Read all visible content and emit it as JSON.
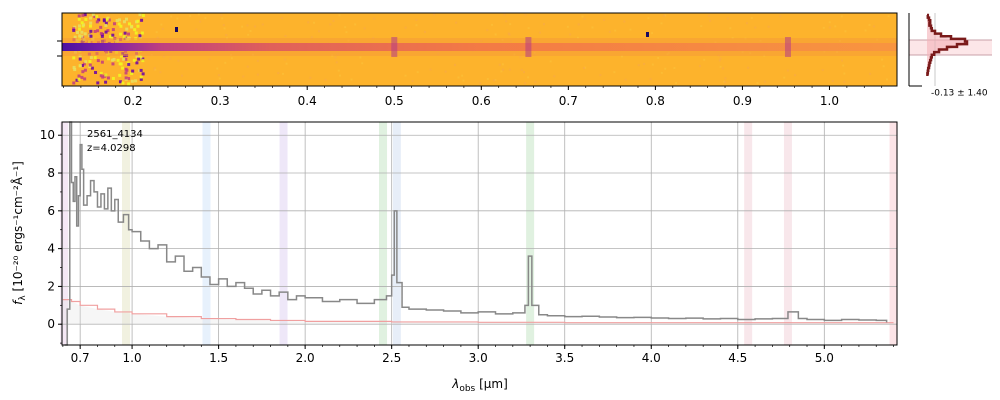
{
  "chart_data": [
    {
      "type": "heatmap",
      "panel": "2d-spectrum",
      "colormap": "plasma",
      "top_axis_ticks": [
        "0.2",
        "0.3",
        "0.4",
        "0.5",
        "0.6",
        "0.7",
        "0.8",
        "0.9",
        "1.0"
      ],
      "emission_features_um": [
        2.515,
        3.29,
        4.79
      ]
    },
    {
      "type": "line",
      "panel": "profile",
      "label": "-0.13 ± 1.40",
      "profile_values": [
        0.0,
        0.02,
        0.05,
        0.08,
        0.06,
        0.1,
        0.12,
        0.2,
        0.35,
        0.6,
        0.95,
        1.0,
        0.75,
        0.5,
        0.3,
        0.18,
        0.12,
        0.1,
        0.08,
        0.06,
        0.05,
        0.03,
        0.02,
        0.01
      ]
    },
    {
      "type": "line",
      "panel": "1d-spectrum",
      "annotation_lines": [
        "2561_4134",
        "z=4.0298"
      ],
      "xlabel_main": "λ",
      "xlabel_sub": "obs",
      "xlabel_unit": " [μm]",
      "ylabel_main": "f",
      "ylabel_sub": "λ",
      "ylabel_unit": " [10⁻²⁰ ergs⁻¹cm⁻²Å⁻¹]",
      "xlim": [
        0.595,
        5.42
      ],
      "ylim": [
        -1.1,
        10.7
      ],
      "x_ticks": [
        "0.7",
        "1.0",
        "1.5",
        "2.0",
        "2.5",
        "3.0",
        "3.5",
        "4.0",
        "4.5",
        "5.0"
      ],
      "y_ticks": [
        "0",
        "2",
        "4",
        "6",
        "8",
        "10"
      ],
      "grid": true,
      "line_bands": [
        {
          "x": 0.608,
          "color": "#cc88cc"
        },
        {
          "x": 0.965,
          "color": "#bbbb66"
        },
        {
          "x": 1.43,
          "color": "#88bbee"
        },
        {
          "x": 1.875,
          "color": "#aa88dd"
        },
        {
          "x": 2.45,
          "color": "#66bb66"
        },
        {
          "x": 2.53,
          "color": "#88aadd"
        },
        {
          "x": 3.3,
          "color": "#66bb66"
        },
        {
          "x": 4.56,
          "color": "#dd8899"
        },
        {
          "x": 4.79,
          "color": "#dd8899"
        },
        {
          "x": 5.4,
          "color": "#ee7788"
        }
      ],
      "series": [
        {
          "color": "#888888",
          "x": [
            0.61,
            0.625,
            0.64,
            0.65,
            0.66,
            0.67,
            0.68,
            0.69,
            0.7,
            0.71,
            0.72,
            0.74,
            0.76,
            0.78,
            0.8,
            0.82,
            0.84,
            0.86,
            0.88,
            0.9,
            0.92,
            0.95,
            0.98,
            1.0,
            1.05,
            1.1,
            1.15,
            1.2,
            1.25,
            1.3,
            1.35,
            1.4,
            1.45,
            1.5,
            1.55,
            1.6,
            1.65,
            1.7,
            1.75,
            1.8,
            1.85,
            1.9,
            1.95,
            2.0,
            2.1,
            2.2,
            2.3,
            2.4,
            2.47,
            2.5,
            2.515,
            2.53,
            2.56,
            2.6,
            2.7,
            2.8,
            2.9,
            3.0,
            3.1,
            3.2,
            3.27,
            3.29,
            3.31,
            3.35,
            3.4,
            3.5,
            3.6,
            3.7,
            3.8,
            3.9,
            4.0,
            4.1,
            4.2,
            4.3,
            4.4,
            4.5,
            4.6,
            4.7,
            4.79,
            4.85,
            4.9,
            5.0,
            5.1,
            5.2,
            5.3,
            5.36
          ],
          "y": [
            -1.1,
            0.8,
            10.7,
            7.5,
            6.5,
            7.8,
            5.2,
            6.8,
            9.5,
            8.2,
            6.3,
            6.8,
            7.6,
            7.0,
            6.2,
            6.9,
            6.1,
            7.2,
            6.0,
            6.6,
            5.4,
            5.8,
            5.0,
            4.9,
            4.4,
            4.0,
            4.2,
            3.3,
            3.6,
            2.8,
            3.0,
            2.5,
            2.1,
            2.4,
            2.0,
            2.2,
            1.9,
            1.6,
            1.8,
            1.5,
            1.7,
            1.3,
            1.5,
            1.4,
            1.2,
            1.3,
            1.1,
            1.3,
            1.5,
            2.6,
            6.0,
            2.2,
            0.9,
            0.8,
            0.75,
            0.7,
            0.6,
            0.65,
            0.55,
            0.6,
            1.0,
            3.6,
            1.0,
            0.5,
            0.45,
            0.4,
            0.42,
            0.38,
            0.35,
            0.36,
            0.33,
            0.3,
            0.32,
            0.28,
            0.3,
            0.25,
            0.28,
            0.3,
            0.65,
            0.3,
            0.25,
            0.2,
            0.25,
            0.22,
            0.2,
            0.1
          ]
        },
        {
          "color": "#f0a0a0",
          "x": [
            0.6,
            0.65,
            0.7,
            0.8,
            0.9,
            1.0,
            1.2,
            1.4,
            1.6,
            1.8,
            2.0,
            2.5,
            3.0,
            3.5,
            4.0,
            4.5,
            5.0,
            5.4
          ],
          "y": [
            1.3,
            1.2,
            1.0,
            0.8,
            0.65,
            0.55,
            0.4,
            0.3,
            0.25,
            0.2,
            0.15,
            0.12,
            0.1,
            0.08,
            0.08,
            0.08,
            0.08,
            0.08
          ]
        }
      ]
    }
  ]
}
